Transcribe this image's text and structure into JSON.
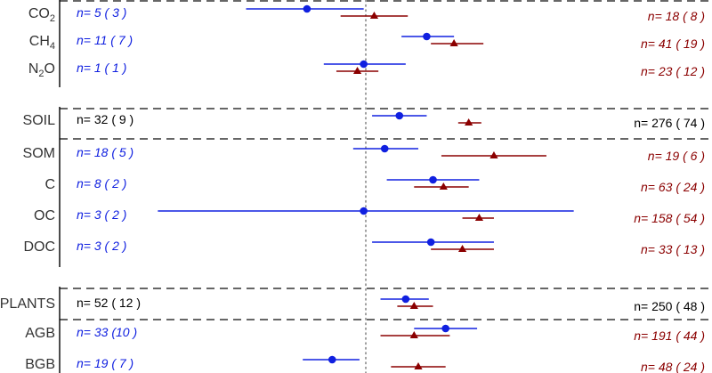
{
  "chart_data": {
    "type": "forest",
    "xlim": [
      -1.0,
      1.0
    ],
    "reference_x": 0,
    "colors": {
      "series_a": "#1020e0",
      "series_b": "#8b0000",
      "group_text": "#000000",
      "axis": "#000000",
      "separator": "#666666",
      "reference": "#888888"
    },
    "rows": [
      {
        "label": "CO",
        "sub": "2",
        "is_group": false,
        "a": {
          "n": "n=  5 ( 3 )",
          "est": -0.28,
          "lo": -0.57,
          "hi": -0.01
        },
        "b": {
          "n": "n= 18 ( 8 )",
          "est": 0.04,
          "lo": -0.12,
          "hi": 0.2
        }
      },
      {
        "label": "CH",
        "sub": "4",
        "is_group": false,
        "a": {
          "n": "n= 11 ( 7 )",
          "est": 0.29,
          "lo": 0.17,
          "hi": 0.42
        },
        "b": {
          "n": "n= 41 ( 19 )",
          "est": 0.42,
          "lo": 0.31,
          "hi": 0.56
        }
      },
      {
        "label": "N",
        "sub": "2",
        "suffix": "O",
        "is_group": false,
        "a": {
          "n": "n=  1 ( 1 )",
          "est": -0.01,
          "lo": -0.2,
          "hi": 0.19
        },
        "b": {
          "n": "n= 23 ( 12 )",
          "est": -0.04,
          "lo": -0.14,
          "hi": 0.06
        }
      },
      {
        "label": "SOIL",
        "is_group": true,
        "a": {
          "n": "n= 32 ( 9 )",
          "est": 0.16,
          "lo": 0.03,
          "hi": 0.29
        },
        "b": {
          "n": "n= 276 ( 74 )",
          "est": 0.49,
          "lo": 0.44,
          "hi": 0.55
        }
      },
      {
        "label": "SOM",
        "is_group": false,
        "a": {
          "n": "n= 18 ( 5 )",
          "est": 0.09,
          "lo": -0.06,
          "hi": 0.25
        },
        "b": {
          "n": "n= 19 ( 6 )",
          "est": 0.61,
          "lo": 0.36,
          "hi": 0.86
        }
      },
      {
        "label": "C",
        "is_group": false,
        "a": {
          "n": "n=  8 ( 2 )",
          "est": 0.32,
          "lo": 0.1,
          "hi": 0.54
        },
        "b": {
          "n": "n= 63 ( 24 )",
          "est": 0.37,
          "lo": 0.23,
          "hi": 0.49
        }
      },
      {
        "label": "OC",
        "is_group": false,
        "a": {
          "n": "n=  3 ( 2 )",
          "est": -0.01,
          "lo": -0.99,
          "hi": 0.99
        },
        "b": {
          "n": "n= 158 ( 54 )",
          "est": 0.54,
          "lo": 0.46,
          "hi": 0.61
        }
      },
      {
        "label": "DOC",
        "is_group": false,
        "a": {
          "n": "n=  3 ( 2 )",
          "est": 0.31,
          "lo": 0.03,
          "hi": 0.61
        },
        "b": {
          "n": "n= 33 ( 13 )",
          "est": 0.46,
          "lo": 0.31,
          "hi": 0.61
        }
      },
      {
        "label": "PLANTS",
        "is_group": true,
        "a": {
          "n": "n= 52 ( 12 )",
          "est": 0.19,
          "lo": 0.07,
          "hi": 0.3
        },
        "b": {
          "n": "n= 250 ( 48 )",
          "est": 0.23,
          "lo": 0.15,
          "hi": 0.32
        }
      },
      {
        "label": "AGB",
        "is_group": false,
        "a": {
          "n": "n= 33 (10 )",
          "est": 0.38,
          "lo": 0.23,
          "hi": 0.53
        },
        "b": {
          "n": "n= 191 ( 44 )",
          "est": 0.23,
          "lo": 0.07,
          "hi": 0.4
        }
      },
      {
        "label": "BGB",
        "is_group": false,
        "a": {
          "n": "n= 19 ( 7 )",
          "est": -0.16,
          "lo": -0.3,
          "hi": -0.03
        },
        "b": {
          "n": "n= 48 ( 24 )",
          "est": 0.25,
          "lo": 0.12,
          "hi": 0.38
        }
      }
    ]
  }
}
